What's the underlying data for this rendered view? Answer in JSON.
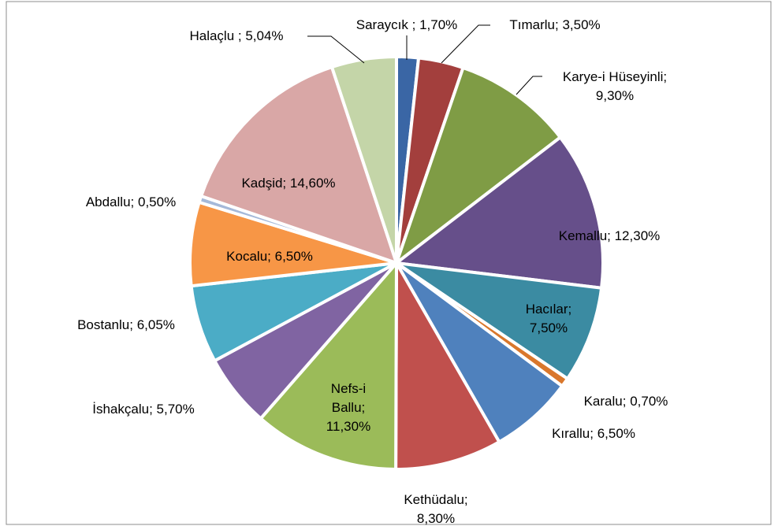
{
  "chart_data": {
    "type": "pie",
    "categories": [
      "Saraycık ;",
      "Tımarlu;",
      "Karye-i Hüseyinli;",
      "Kemallu;",
      "Hacılar;",
      "Karalu;",
      "Kırallu;",
      "Kethüdalu;",
      "Nefs-i Ballu;",
      "İshakçalu;",
      "Bostanlu;",
      "Kocalu;",
      "Abdallu;",
      "Kadşid;",
      "Halaçlu ;"
    ],
    "values": [
      1.7,
      3.5,
      9.3,
      12.3,
      7.5,
      0.7,
      6.5,
      8.3,
      11.3,
      5.7,
      6.05,
      6.5,
      0.5,
      14.6,
      5.04
    ],
    "value_labels": [
      "1,70%",
      "3,50%",
      "9,30%",
      "12,30%",
      "7,50%",
      "0,70%",
      "6,50%",
      "8,30%",
      "11,30%",
      "5,70%",
      "6,05%",
      "6,50%",
      "0,50%",
      "14,60%",
      "5,04%"
    ],
    "colors": [
      "#3a66a5",
      "#a33f3d",
      "#7f9c45",
      "#664f8a",
      "#3b8ba2",
      "#d9772c",
      "#4f81bd",
      "#c0504d",
      "#9bbb59",
      "#8064a2",
      "#4bacc6",
      "#f79646",
      "#a5b9d9",
      "#d9a7a6",
      "#c4d5a8"
    ]
  }
}
